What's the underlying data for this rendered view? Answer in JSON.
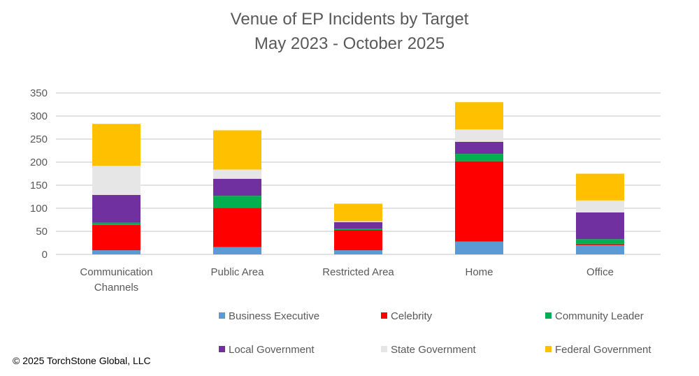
{
  "chart_data": {
    "type": "bar",
    "stacked": true,
    "title": "Venue of EP Incidents by Target",
    "subtitle": "May 2023 - October 2025",
    "xlabel": "",
    "ylabel": "",
    "ylim": [
      0,
      350
    ],
    "yticks": [
      0,
      50,
      100,
      150,
      200,
      250,
      300,
      350
    ],
    "grid": true,
    "legend_placement": "bottom",
    "categories": [
      [
        "Communication",
        "Channels"
      ],
      [
        "Public Area"
      ],
      [
        "Restricted Area"
      ],
      [
        "Home"
      ],
      [
        "Office"
      ]
    ],
    "series": [
      {
        "name": "Business Executive",
        "color": "#5b9bd5",
        "values": [
          9,
          16,
          9,
          28,
          20
        ]
      },
      {
        "name": "Celebrity",
        "color": "#ff0000",
        "values": [
          55,
          85,
          44,
          174,
          3
        ]
      },
      {
        "name": "Community Leader",
        "color": "#00b050",
        "values": [
          5,
          26,
          3,
          16,
          10
        ]
      },
      {
        "name": "Local Government",
        "color": "#7030a0",
        "values": [
          60,
          37,
          14,
          26,
          58
        ]
      },
      {
        "name": "State Government",
        "color": "#e7e6e6",
        "values": [
          63,
          20,
          2,
          27,
          26
        ]
      },
      {
        "name": "Federal Government",
        "color": "#ffc000",
        "values": [
          91,
          85,
          38,
          59,
          58
        ]
      }
    ]
  },
  "footer": {
    "copyright": "© 2025 TorchStone Global, LLC"
  }
}
